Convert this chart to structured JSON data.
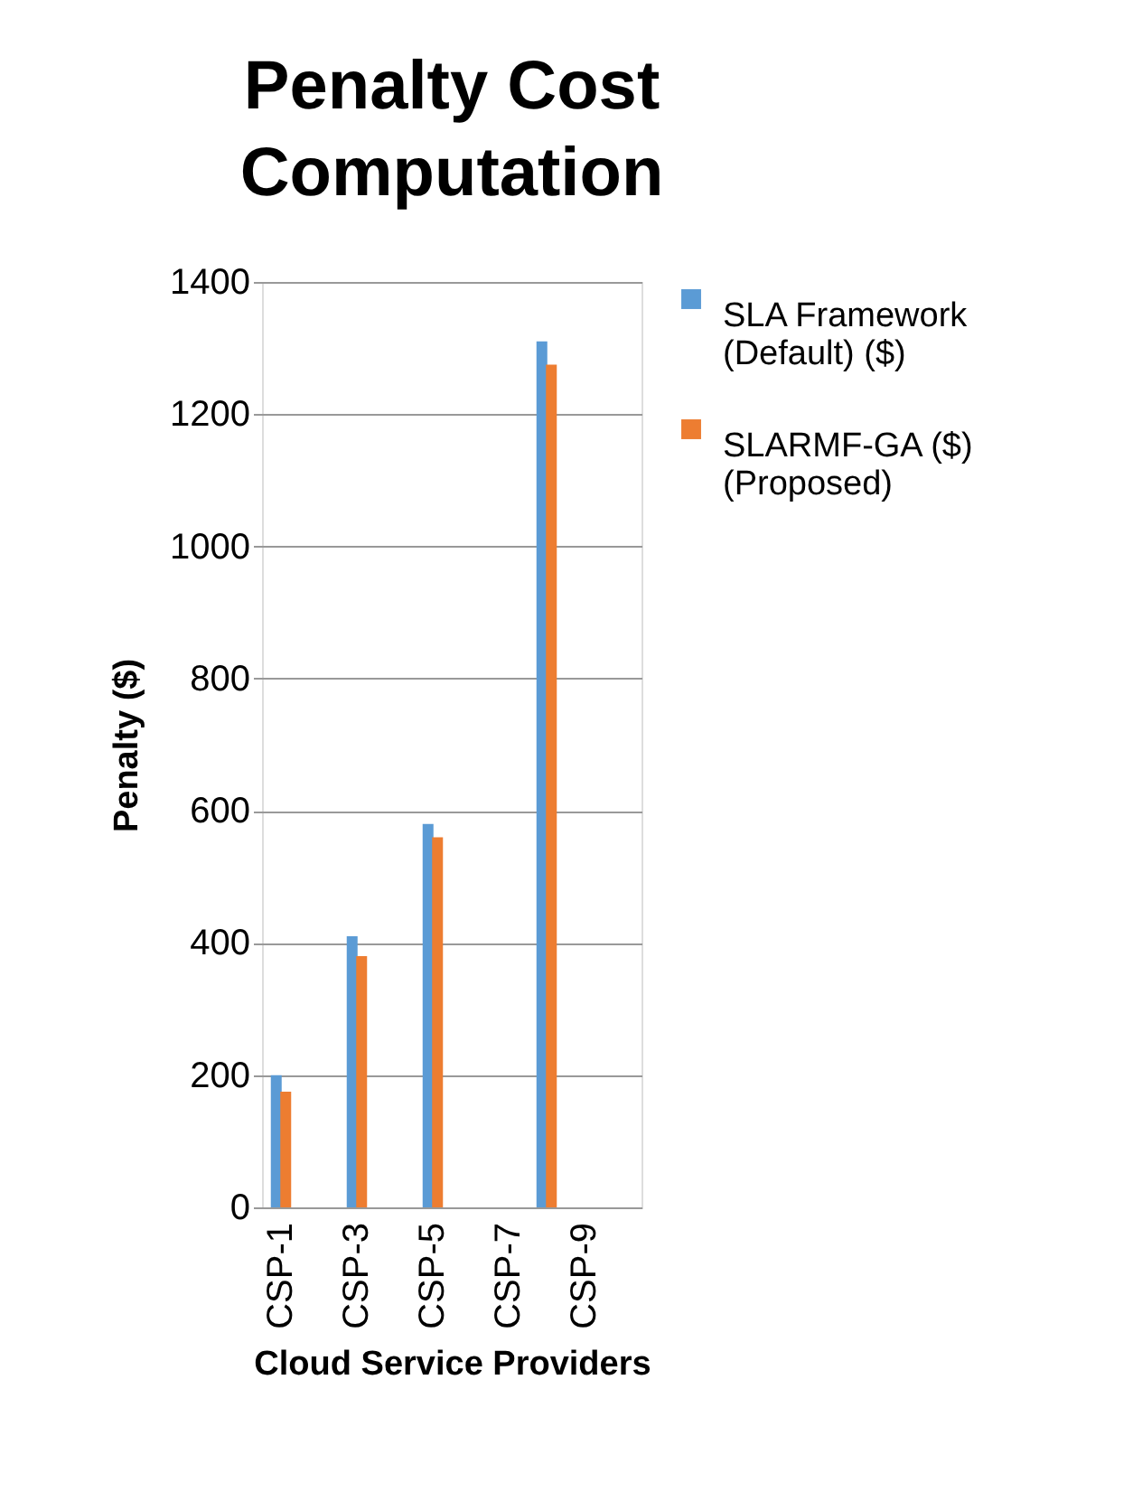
{
  "chart_data": {
    "type": "bar",
    "title": "Penalty Cost Computation",
    "xlabel": "Cloud Service Providers",
    "ylabel": "Penalty ($)",
    "categories": [
      "CSP-1",
      null,
      "CSP-3",
      null,
      "CSP-5",
      null,
      "CSP-7",
      null,
      "CSP-9",
      null
    ],
    "series": [
      {
        "name": "SLA Framework (Default) ($)",
        "color": "#5b9bd5",
        "values": [
          200,
          null,
          410,
          null,
          580,
          null,
          null,
          1310,
          null,
          null
        ]
      },
      {
        "name": "SLARMF-GA ($) (Proposed)",
        "color": "#ed7d31",
        "values": [
          175,
          null,
          380,
          null,
          560,
          null,
          null,
          1275,
          null,
          null
        ]
      }
    ],
    "ylim": [
      0,
      1400
    ],
    "yticks": [
      0,
      200,
      400,
      600,
      800,
      1000,
      1200,
      1400
    ],
    "grid": "y",
    "legend": "right"
  }
}
